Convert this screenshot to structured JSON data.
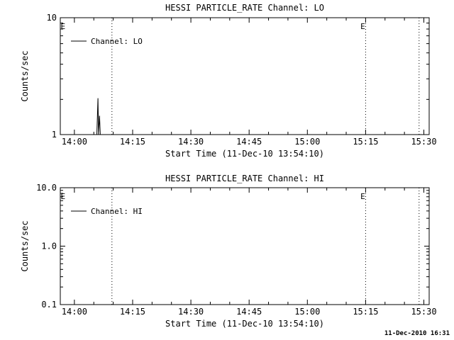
{
  "page": {
    "footer_timestamp": "11-Dec-2010 16:31"
  },
  "chart_data": [
    {
      "type": "line",
      "title": "HESSI PARTICLE_RATE Channel: LO",
      "xlabel": "Start Time (11-Dec-10 13:54:10)",
      "ylabel": "Counts/sec",
      "yscale": "log",
      "ylim": [
        1,
        10
      ],
      "yticks": [
        {
          "value": 1,
          "label": "1"
        },
        {
          "value": 10,
          "label": "10"
        }
      ],
      "x_domain_minutes_after_start": [
        2.2,
        97.2
      ],
      "xticks": [
        {
          "t": 5.83,
          "label": "14:00"
        },
        {
          "t": 20.83,
          "label": "14:15"
        },
        {
          "t": 35.83,
          "label": "14:30"
        },
        {
          "t": 50.83,
          "label": "14:45"
        },
        {
          "t": 65.83,
          "label": "15:00"
        },
        {
          "t": 80.83,
          "label": "15:15"
        },
        {
          "t": 95.83,
          "label": "15:30"
        }
      ],
      "x_minor_tick_step_minutes": 5,
      "grid": false,
      "legend": {
        "position": "top-left-inside",
        "entries": [
          {
            "label": "Channel: LO"
          }
        ]
      },
      "event_lines_t": [
        15.5,
        80.83,
        94.6
      ],
      "event_markers": [
        {
          "t": 2.9,
          "label": "E"
        },
        {
          "t": 80.1,
          "label": "E"
        }
      ],
      "line_color": "#000000",
      "series": [
        {
          "name": "Channel: LO",
          "points": [
            [
              2.2,
              1.0
            ],
            [
              11.6,
              1.0
            ],
            [
              11.9,
              2.05
            ],
            [
              12.05,
              1.0
            ],
            [
              12.3,
              1.45
            ],
            [
              12.5,
              1.0
            ],
            [
              97.2,
              1.0
            ]
          ]
        }
      ]
    },
    {
      "type": "line",
      "title": "HESSI PARTICLE_RATE Channel: HI",
      "xlabel": "Start Time (11-Dec-10 13:54:10)",
      "ylabel": "Counts/sec",
      "yscale": "log",
      "ylim": [
        0.1,
        10
      ],
      "yticks": [
        {
          "value": 0.1,
          "label": "0.1"
        },
        {
          "value": 1,
          "label": "1.0"
        },
        {
          "value": 10,
          "label": "10.0"
        }
      ],
      "x_domain_minutes_after_start": [
        2.2,
        97.2
      ],
      "xticks": [
        {
          "t": 5.83,
          "label": "14:00"
        },
        {
          "t": 20.83,
          "label": "14:15"
        },
        {
          "t": 35.83,
          "label": "14:30"
        },
        {
          "t": 50.83,
          "label": "14:45"
        },
        {
          "t": 65.83,
          "label": "15:00"
        },
        {
          "t": 80.83,
          "label": "15:15"
        },
        {
          "t": 95.83,
          "label": "15:30"
        }
      ],
      "x_minor_tick_step_minutes": 5,
      "grid": false,
      "legend": {
        "position": "top-left-inside",
        "entries": [
          {
            "label": "Channel: HI"
          }
        ]
      },
      "event_lines_t": [
        15.5,
        80.83,
        94.6
      ],
      "event_markers": [
        {
          "t": 2.9,
          "label": "E"
        },
        {
          "t": 80.1,
          "label": "E"
        }
      ],
      "line_color": "#000000",
      "series": [
        {
          "name": "Channel: HI",
          "points": [
            [
              2.2,
              0.1
            ],
            [
              97.2,
              0.1
            ]
          ]
        }
      ]
    }
  ]
}
